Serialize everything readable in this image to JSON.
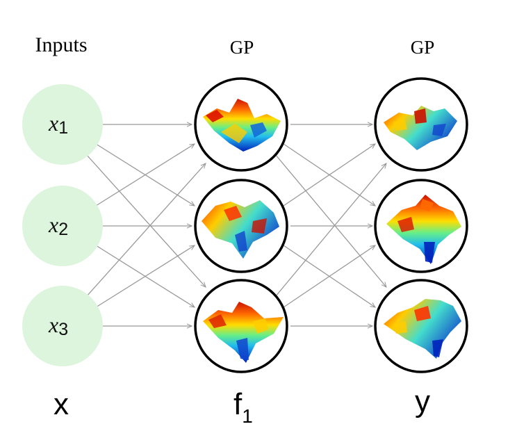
{
  "headers": {
    "inputs": "Inputs",
    "gp_layer1": "GP",
    "gp_layer2": "GP"
  },
  "input_nodes": [
    {
      "var": "x",
      "sub": "1"
    },
    {
      "var": "x",
      "sub": "2"
    },
    {
      "var": "x",
      "sub": "3"
    }
  ],
  "bottom_labels": {
    "x": "x",
    "f": {
      "main": "f",
      "sub": "1"
    },
    "y": "y"
  },
  "colors": {
    "input_fill": "#dcf5dc",
    "arrow": "#999999",
    "node_stroke": "#000000",
    "jet_low": "#0033cc",
    "jet_mid": "#33ddcc",
    "jet_high": "#cc1100"
  }
}
